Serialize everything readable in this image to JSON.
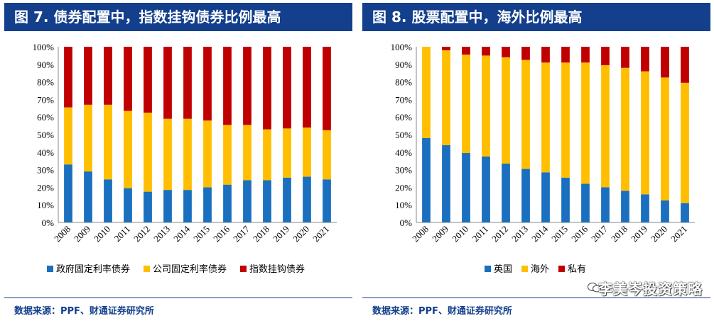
{
  "chart_data": [
    {
      "type": "bar",
      "stacked": true,
      "title": "图 7. 债券配置中，指数挂钩债券比例最高",
      "categories": [
        "2008",
        "2009",
        "2010",
        "2011",
        "2012",
        "2013",
        "2014",
        "2015",
        "2016",
        "2017",
        "2018",
        "2019",
        "2020",
        "2021"
      ],
      "series": [
        {
          "name": "政府固定利率债券",
          "color": "#1a6fbf",
          "values": [
            33,
            29,
            24.5,
            19.5,
            17.5,
            18.5,
            18.5,
            20,
            21.5,
            24,
            24,
            25.5,
            26,
            24.5
          ]
        },
        {
          "name": "公司固定利率债券",
          "color": "#ffbf00",
          "values": [
            32.5,
            38,
            42.5,
            44,
            45,
            40.5,
            40.5,
            38,
            34,
            31.5,
            29,
            28,
            28,
            28
          ]
        },
        {
          "name": "指数挂钩债券",
          "color": "#c00000",
          "values": [
            34.5,
            33,
            33,
            36.5,
            37.5,
            41,
            41,
            42,
            44.5,
            44.5,
            47,
            46.5,
            46,
            47.5
          ]
        }
      ],
      "ylim": [
        0,
        100
      ],
      "yticks": [
        "0%",
        "10%",
        "20%",
        "30%",
        "40%",
        "50%",
        "60%",
        "70%",
        "80%",
        "90%",
        "100%"
      ],
      "legend_position": "bottom",
      "source": "数据来源：PPF、财通证券研究所"
    },
    {
      "type": "bar",
      "stacked": true,
      "title": "图 8. 股票配置中，海外比例最高",
      "categories": [
        "2008",
        "2009",
        "2010",
        "2011",
        "2012",
        "2013",
        "2014",
        "2015",
        "2016",
        "2017",
        "2018",
        "2019",
        "2020",
        "2021"
      ],
      "series": [
        {
          "name": "英国",
          "color": "#1a6fbf",
          "values": [
            48,
            44,
            39.5,
            37.5,
            33.5,
            30.5,
            28.5,
            25.5,
            22,
            20,
            18,
            16,
            12.5,
            11
          ]
        },
        {
          "name": "海外",
          "color": "#ffbf00",
          "values": [
            52,
            54,
            56,
            57.5,
            60.5,
            62,
            62.5,
            65.5,
            69,
            69.5,
            70,
            70,
            70,
            68.5
          ]
        },
        {
          "name": "私有",
          "color": "#c00000",
          "values": [
            0,
            2,
            4.5,
            5,
            6,
            7.5,
            9,
            9,
            9,
            10.5,
            12,
            14,
            17.5,
            20.5
          ]
        }
      ],
      "ylim": [
        0,
        100
      ],
      "yticks": [
        "0%",
        "10%",
        "20%",
        "30%",
        "40%",
        "50%",
        "60%",
        "70%",
        "80%",
        "90%",
        "100%"
      ],
      "legend_position": "bottom",
      "source": "数据来源：PPF、财通证券研究所"
    }
  ],
  "watermark": "李美岑投资策略",
  "watermark_icon": "wechat-icon"
}
